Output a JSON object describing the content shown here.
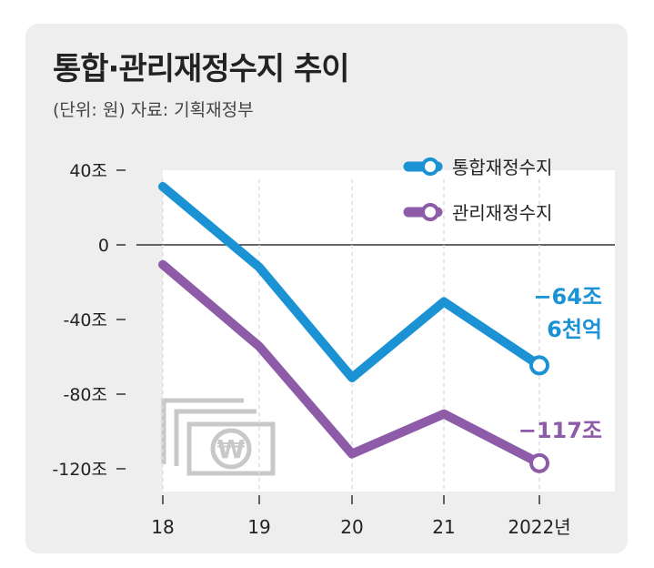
{
  "title": "통합·관리재정수지 추이",
  "subtitle": "(단위: 원) 자료: 기획재정부",
  "colors": {
    "integrated": "#1a92d4",
    "managed": "#8e5ba8",
    "background": "#eeeeee",
    "plot_area": "#ffffff"
  },
  "legend": {
    "integrated": "통합재정수지",
    "managed": "관리재정수지",
    "position": "top-right"
  },
  "annotations": {
    "integrated_line1": "−64조",
    "integrated_line2": "6천억",
    "managed": "−117조"
  },
  "chart_data": {
    "type": "line",
    "title": "통합·관리재정수지 추이",
    "x_categories": [
      "18",
      "19",
      "20",
      "21",
      "2022년"
    ],
    "y_ticks": [
      {
        "value": 40,
        "label": "40조"
      },
      {
        "value": 0,
        "label": "0"
      },
      {
        "value": -40,
        "label": "-40조"
      },
      {
        "value": -80,
        "label": "-80조"
      },
      {
        "value": -120,
        "label": "-120조"
      }
    ],
    "ylim": [
      -125,
      45
    ],
    "series": [
      {
        "name": "통합재정수지",
        "key": "integrated",
        "values": [
          31.2,
          -12.0,
          -71.2,
          -30.5,
          -64.6
        ]
      },
      {
        "name": "관리재정수지",
        "key": "managed",
        "values": [
          -10.6,
          -54.4,
          -112.0,
          -90.6,
          -117.0
        ]
      }
    ]
  }
}
